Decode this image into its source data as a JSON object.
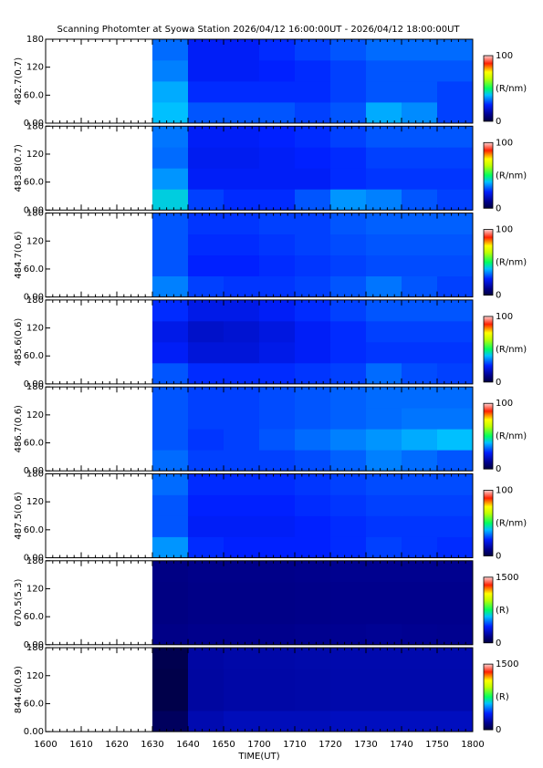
{
  "chart_data": {
    "type": "heatmap",
    "title": "Scanning Photomter at Syowa Station 2026/04/12 16:00:00UT - 2026/04/12 18:00:00UT",
    "xlabel": "TIME(UT)",
    "xticks": [
      "1600",
      "1610",
      "1620",
      "1630",
      "1640",
      "1650",
      "1700",
      "1710",
      "1720",
      "1730",
      "1740",
      "1750",
      "1800"
    ],
    "ylim": [
      0,
      180
    ],
    "yticks": [
      {
        "value": 0,
        "label": "0.00"
      },
      {
        "value": 60,
        "label": "60.0"
      },
      120,
      180
    ],
    "panels": [
      {
        "ylabel": "482.7(0.7)",
        "zlabel": "(R/nm)",
        "zlim": [
          0,
          100
        ],
        "zticks": [
          0,
          100
        ],
        "values": [
          [
            null,
            null,
            null,
            40,
            30,
            30,
            30,
            28,
            30,
            38,
            35,
            28
          ],
          [
            null,
            null,
            null,
            38,
            26,
            26,
            26,
            26,
            28,
            30,
            30,
            28
          ],
          [
            null,
            null,
            null,
            34,
            24,
            24,
            25,
            26,
            28,
            30,
            30,
            30
          ],
          [
            null,
            null,
            null,
            32,
            24,
            24,
            26,
            28,
            30,
            32,
            32,
            32
          ]
        ]
      },
      {
        "ylabel": "483.8(0.7)",
        "zlabel": "(R/nm)",
        "zlim": [
          0,
          100
        ],
        "zticks": [
          0,
          100
        ],
        "values": [
          [
            null,
            null,
            null,
            42,
            28,
            26,
            26,
            30,
            36,
            34,
            30,
            28
          ],
          [
            null,
            null,
            null,
            36,
            24,
            24,
            24,
            24,
            26,
            27,
            27,
            27
          ],
          [
            null,
            null,
            null,
            32,
            23,
            23,
            24,
            25,
            26,
            28,
            28,
            28
          ],
          [
            null,
            null,
            null,
            33,
            24,
            24,
            25,
            26,
            28,
            30,
            30,
            30
          ]
        ]
      },
      {
        "ylabel": "484.7(0.6)",
        "zlabel": "(R/nm)",
        "zlim": [
          0,
          100
        ],
        "zticks": [
          0,
          100
        ],
        "values": [
          [
            null,
            null,
            null,
            34,
            28,
            27,
            27,
            28,
            30,
            33,
            30,
            28
          ],
          [
            null,
            null,
            null,
            30,
            25,
            25,
            26,
            27,
            28,
            29,
            29,
            29
          ],
          [
            null,
            null,
            null,
            30,
            26,
            26,
            27,
            28,
            29,
            30,
            30,
            30
          ],
          [
            null,
            null,
            null,
            30,
            27,
            27,
            28,
            28,
            30,
            31,
            31,
            31
          ]
        ]
      },
      {
        "ylabel": "485.6(0.6)",
        "zlabel": "(R/nm)",
        "zlim": [
          0,
          100
        ],
        "zticks": [
          0,
          100
        ],
        "values": [
          [
            null,
            null,
            null,
            30,
            26,
            26,
            26,
            27,
            28,
            32,
            29,
            28
          ],
          [
            null,
            null,
            null,
            24,
            20,
            20,
            22,
            24,
            26,
            27,
            27,
            27
          ],
          [
            null,
            null,
            null,
            22,
            18,
            19,
            21,
            24,
            26,
            28,
            28,
            28
          ],
          [
            null,
            null,
            null,
            26,
            22,
            22,
            24,
            26,
            28,
            30,
            30,
            30
          ]
        ]
      },
      {
        "ylabel": "486.7(0.6)",
        "zlabel": "(R/nm)",
        "zlim": [
          0,
          100
        ],
        "zticks": [
          0,
          100
        ],
        "values": [
          [
            null,
            null,
            null,
            32,
            28,
            28,
            28,
            29,
            31,
            34,
            32,
            30
          ],
          [
            null,
            null,
            null,
            30,
            27,
            28,
            30,
            32,
            34,
            36,
            38,
            40
          ],
          [
            null,
            null,
            null,
            30,
            28,
            28,
            29,
            30,
            31,
            32,
            33,
            33
          ],
          [
            null,
            null,
            null,
            30,
            28,
            28,
            29,
            30,
            31,
            32,
            32,
            32
          ]
        ]
      },
      {
        "ylabel": "487.5(0.6)",
        "zlabel": "(R/nm)",
        "zlim": [
          0,
          100
        ],
        "zticks": [
          0,
          100
        ],
        "values": [
          [
            null,
            null,
            null,
            36,
            26,
            25,
            25,
            25,
            26,
            28,
            27,
            26
          ],
          [
            null,
            null,
            null,
            30,
            24,
            24,
            24,
            25,
            26,
            27,
            27,
            27
          ],
          [
            null,
            null,
            null,
            30,
            25,
            25,
            25,
            26,
            27,
            28,
            28,
            28
          ],
          [
            null,
            null,
            null,
            32,
            26,
            26,
            26,
            27,
            28,
            29,
            29,
            29
          ]
        ]
      },
      {
        "ylabel": "670.5(5.3)",
        "zlabel": "(R)",
        "zlim": [
          0,
          1500
        ],
        "zticks": [
          0,
          1500
        ],
        "values": [
          [
            null,
            null,
            null,
            140,
            150,
            150,
            150,
            155,
            160,
            165,
            160,
            155
          ],
          [
            null,
            null,
            null,
            130,
            140,
            140,
            140,
            145,
            150,
            150,
            150,
            150
          ],
          [
            null,
            null,
            null,
            130,
            140,
            140,
            140,
            145,
            150,
            150,
            150,
            150
          ],
          [
            null,
            null,
            null,
            135,
            145,
            145,
            145,
            150,
            155,
            155,
            155,
            155
          ]
        ]
      },
      {
        "ylabel": "844.6(0.9)",
        "zlabel": "(R)",
        "zlim": [
          0,
          1500
        ],
        "zticks": [
          0,
          1500
        ],
        "values": [
          [
            null,
            null,
            null,
            60,
            220,
            240,
            240,
            240,
            250,
            250,
            250,
            250
          ],
          [
            null,
            null,
            null,
            20,
            190,
            200,
            200,
            205,
            210,
            210,
            210,
            210
          ],
          [
            null,
            null,
            null,
            20,
            190,
            200,
            200,
            205,
            210,
            210,
            210,
            210
          ],
          [
            null,
            null,
            null,
            30,
            195,
            205,
            205,
            210,
            215,
            215,
            215,
            215
          ]
        ]
      }
    ]
  }
}
